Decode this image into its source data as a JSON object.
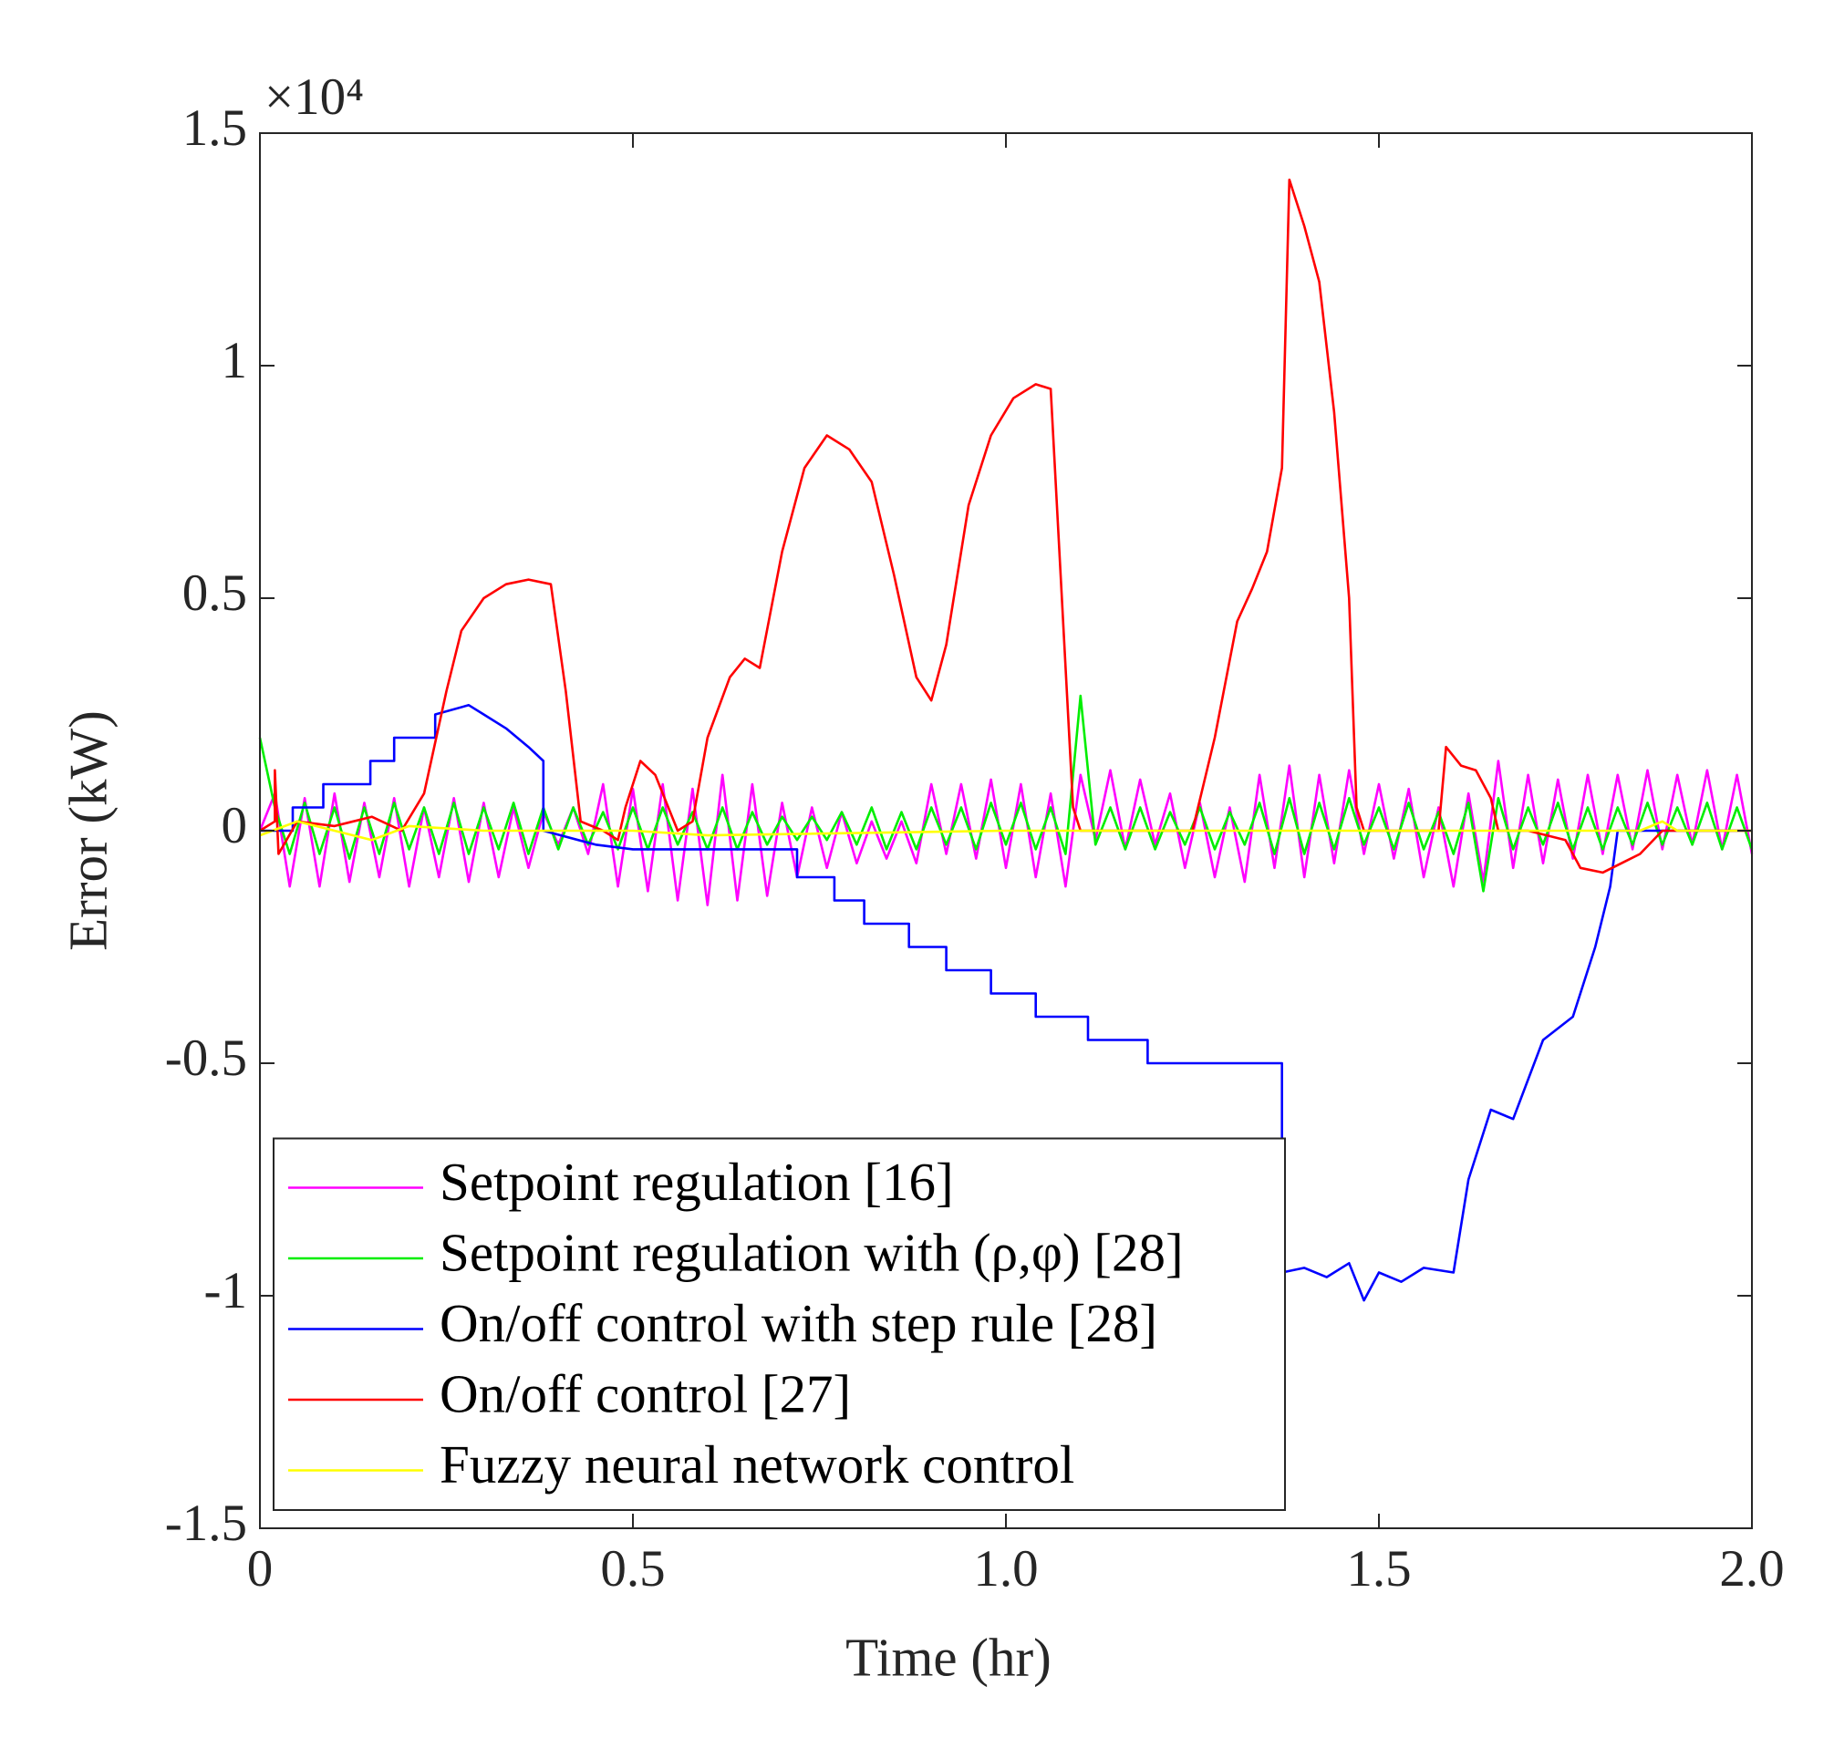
{
  "chart_data": {
    "type": "line",
    "y_multiplier": "×10⁴",
    "xlabel": "Time (hr)",
    "ylabel": "Error (kW)",
    "xlim": [
      0,
      2
    ],
    "ylim": [
      -1.5,
      1.5
    ],
    "xticks": [
      0,
      0.5,
      {
        "value": 1,
        "label": "1.0"
      },
      1.5,
      {
        "value": 2,
        "label": "2.0"
      }
    ],
    "yticks": [
      -1.5,
      -1,
      -0.5,
      0,
      0.5,
      1,
      1.5
    ],
    "legend": "lower left",
    "series": [
      {
        "name": "Setpoint regulation [16]",
        "color": "#ff00ff",
        "x": [
          0,
          0.02,
          0.04,
          0.06,
          0.08,
          0.1,
          0.12,
          0.14,
          0.16,
          0.18,
          0.2,
          0.22,
          0.24,
          0.26,
          0.28,
          0.3,
          0.32,
          0.34,
          0.36,
          0.38,
          0.4,
          0.42,
          0.44,
          0.46,
          0.48,
          0.5,
          0.52,
          0.54,
          0.56,
          0.58,
          0.6,
          0.62,
          0.64,
          0.66,
          0.68,
          0.7,
          0.72,
          0.74,
          0.76,
          0.78,
          0.8,
          0.82,
          0.84,
          0.86,
          0.88,
          0.9,
          0.92,
          0.94,
          0.96,
          0.98,
          1,
          1.02,
          1.04,
          1.06,
          1.08,
          1.1,
          1.12,
          1.14,
          1.16,
          1.18,
          1.2,
          1.22,
          1.24,
          1.26,
          1.28,
          1.3,
          1.32,
          1.34,
          1.36,
          1.38,
          1.4,
          1.42,
          1.44,
          1.46,
          1.48,
          1.5,
          1.52,
          1.54,
          1.56,
          1.58,
          1.6,
          1.62,
          1.64,
          1.66,
          1.68,
          1.7,
          1.72,
          1.74,
          1.76,
          1.78,
          1.8,
          1.82,
          1.84,
          1.86,
          1.88,
          1.9,
          1.92,
          1.94,
          1.96,
          1.98,
          2
        ],
        "values": [
          0,
          0.08,
          -0.12,
          0.07,
          -0.12,
          0.08,
          -0.11,
          0.06,
          -0.1,
          0.07,
          -0.12,
          0.05,
          -0.1,
          0.07,
          -0.11,
          0.06,
          -0.1,
          0.05,
          -0.08,
          0.04,
          -0.03,
          0.05,
          -0.05,
          0.1,
          -0.12,
          0.09,
          -0.13,
          0.1,
          -0.15,
          0.09,
          -0.16,
          0.12,
          -0.15,
          0.1,
          -0.14,
          0.06,
          -0.1,
          0.05,
          -0.08,
          0.04,
          -0.07,
          0.02,
          -0.06,
          0.02,
          -0.07,
          0.1,
          -0.05,
          0.1,
          -0.06,
          0.11,
          -0.08,
          0.1,
          -0.1,
          0.08,
          -0.12,
          0.12,
          -0.02,
          0.13,
          -0.04,
          0.11,
          -0.03,
          0.08,
          -0.08,
          0.06,
          -0.1,
          0.05,
          -0.11,
          0.12,
          -0.08,
          0.14,
          -0.1,
          0.12,
          -0.07,
          0.13,
          -0.05,
          0.1,
          -0.06,
          0.09,
          -0.1,
          0.05,
          -0.12,
          0.08,
          -0.11,
          0.15,
          -0.08,
          0.12,
          -0.07,
          0.11,
          -0.06,
          0.12,
          -0.05,
          0.12,
          -0.04,
          0.13,
          -0.04,
          0.12,
          -0.03,
          0.13,
          -0.04,
          0.12,
          -0.05
        ]
      },
      {
        "name": "Setpoint regulation with (ρ,φ) [28]",
        "color": "#00ee00",
        "x": [
          0,
          0.02,
          0.04,
          0.06,
          0.08,
          0.1,
          0.12,
          0.14,
          0.16,
          0.18,
          0.2,
          0.22,
          0.24,
          0.26,
          0.28,
          0.3,
          0.32,
          0.34,
          0.36,
          0.38,
          0.4,
          0.42,
          0.44,
          0.46,
          0.48,
          0.5,
          0.52,
          0.54,
          0.56,
          0.58,
          0.6,
          0.62,
          0.64,
          0.66,
          0.68,
          0.7,
          0.72,
          0.74,
          0.76,
          0.78,
          0.8,
          0.82,
          0.84,
          0.86,
          0.88,
          0.9,
          0.92,
          0.94,
          0.96,
          0.98,
          1,
          1.02,
          1.04,
          1.06,
          1.08,
          1.1,
          1.12,
          1.14,
          1.16,
          1.18,
          1.2,
          1.22,
          1.24,
          1.26,
          1.28,
          1.3,
          1.32,
          1.34,
          1.36,
          1.38,
          1.4,
          1.42,
          1.44,
          1.46,
          1.48,
          1.5,
          1.52,
          1.54,
          1.56,
          1.58,
          1.6,
          1.62,
          1.64,
          1.66,
          1.68,
          1.7,
          1.72,
          1.74,
          1.76,
          1.78,
          1.8,
          1.82,
          1.84,
          1.86,
          1.88,
          1.9,
          1.92,
          1.94,
          1.96,
          1.98,
          2
        ],
        "values": [
          0.2,
          0.05,
          -0.05,
          0.06,
          -0.05,
          0.05,
          -0.06,
          0.05,
          -0.05,
          0.06,
          -0.04,
          0.05,
          -0.05,
          0.06,
          -0.05,
          0.05,
          -0.04,
          0.06,
          -0.05,
          0.05,
          -0.04,
          0.05,
          -0.03,
          0.04,
          -0.04,
          0.05,
          -0.04,
          0.05,
          -0.03,
          0.04,
          -0.04,
          0.05,
          -0.04,
          0.04,
          -0.03,
          0.03,
          -0.02,
          0.03,
          -0.02,
          0.04,
          -0.03,
          0.05,
          -0.04,
          0.04,
          -0.04,
          0.05,
          -0.03,
          0.05,
          -0.04,
          0.06,
          -0.03,
          0.06,
          -0.04,
          0.05,
          -0.05,
          0.29,
          -0.03,
          0.05,
          -0.04,
          0.05,
          -0.04,
          0.04,
          -0.03,
          0.05,
          -0.04,
          0.04,
          -0.03,
          0.06,
          -0.05,
          0.07,
          -0.05,
          0.06,
          -0.04,
          0.07,
          -0.03,
          0.05,
          -0.04,
          0.06,
          -0.04,
          0.04,
          -0.05,
          0.06,
          -0.13,
          0.07,
          -0.04,
          0.05,
          -0.03,
          0.06,
          -0.04,
          0.05,
          -0.04,
          0.05,
          -0.03,
          0.06,
          -0.03,
          0.05,
          -0.03,
          0.06,
          -0.04,
          0.05,
          -0.04
        ]
      },
      {
        "name": "On/off control with step rule [28]",
        "color": "#0000ff",
        "x": [
          0,
          0.044,
          0.044,
          0.085,
          0.085,
          0.148,
          0.148,
          0.18,
          0.18,
          0.235,
          0.235,
          0.28,
          0.3,
          0.33,
          0.36,
          0.38,
          0.38,
          0.45,
          0.5,
          0.72,
          0.72,
          0.77,
          0.77,
          0.81,
          0.81,
          0.87,
          0.87,
          0.92,
          0.92,
          0.98,
          0.98,
          1.04,
          1.04,
          1.11,
          1.11,
          1.19,
          1.19,
          1.37,
          1.37,
          1.4,
          1.43,
          1.46,
          1.48,
          1.5,
          1.53,
          1.56,
          1.6,
          1.62,
          1.65,
          1.68,
          1.72,
          1.76,
          1.79,
          1.81,
          1.82,
          1.9,
          2
        ],
        "values": [
          0,
          0,
          0.05,
          0.05,
          0.1,
          0.1,
          0.15,
          0.15,
          0.2,
          0.2,
          0.25,
          0.27,
          0.25,
          0.22,
          0.18,
          0.15,
          0,
          -0.03,
          -0.04,
          -0.04,
          -0.1,
          -0.1,
          -0.15,
          -0.15,
          -0.2,
          -0.2,
          -0.25,
          -0.25,
          -0.3,
          -0.3,
          -0.35,
          -0.35,
          -0.4,
          -0.4,
          -0.45,
          -0.45,
          -0.5,
          -0.5,
          -0.95,
          -0.94,
          -0.96,
          -0.93,
          -1.01,
          -0.95,
          -0.97,
          -0.94,
          -0.95,
          -0.75,
          -0.6,
          -0.62,
          -0.45,
          -0.4,
          -0.25,
          -0.12,
          0,
          0,
          0
        ]
      },
      {
        "name": "On/off control [27]",
        "color": "#ff0000",
        "x": [
          0,
          0.02,
          0.02,
          0.025,
          0.05,
          0.1,
          0.15,
          0.19,
          0.22,
          0.25,
          0.27,
          0.3,
          0.33,
          0.36,
          0.39,
          0.41,
          0.43,
          0.46,
          0.48,
          0.49,
          0.51,
          0.53,
          0.56,
          0.58,
          0.6,
          0.63,
          0.65,
          0.67,
          0.7,
          0.73,
          0.76,
          0.79,
          0.82,
          0.85,
          0.88,
          0.9,
          0.92,
          0.95,
          0.98,
          1.01,
          1.04,
          1.06,
          1.09,
          1.1,
          1.2,
          1.25,
          1.28,
          1.31,
          1.33,
          1.35,
          1.37,
          1.38,
          1.4,
          1.42,
          1.44,
          1.46,
          1.47,
          1.48,
          1.58,
          1.59,
          1.61,
          1.63,
          1.65,
          1.66,
          1.7,
          1.75,
          1.77,
          1.8,
          1.85,
          1.88,
          2
        ],
        "values": [
          0,
          0.02,
          0.13,
          -0.05,
          0.02,
          0.01,
          0.03,
          0,
          0.08,
          0.3,
          0.43,
          0.5,
          0.53,
          0.54,
          0.53,
          0.3,
          0.02,
          0,
          -0.02,
          0.05,
          0.15,
          0.12,
          0,
          0.02,
          0.2,
          0.33,
          0.37,
          0.35,
          0.6,
          0.78,
          0.85,
          0.82,
          0.75,
          0.55,
          0.33,
          0.28,
          0.4,
          0.7,
          0.85,
          0.93,
          0.96,
          0.95,
          0.05,
          0,
          0,
          0,
          0.2,
          0.45,
          0.52,
          0.6,
          0.78,
          1.4,
          1.3,
          1.18,
          0.9,
          0.5,
          0.05,
          0,
          0,
          0.18,
          0.14,
          0.13,
          0.07,
          0,
          0,
          -0.02,
          -0.08,
          -0.09,
          -0.05,
          0,
          0
        ]
      },
      {
        "name": "Fuzzy neural network control",
        "color": "#ffff00",
        "x": [
          0,
          0.05,
          0.1,
          0.15,
          0.2,
          0.3,
          0.5,
          0.6,
          1,
          1.5,
          1.85,
          1.88,
          1.9,
          2
        ],
        "values": [
          -0.01,
          0.02,
          0,
          -0.02,
          0.01,
          0,
          0,
          -0.01,
          0,
          0,
          0,
          0.02,
          0,
          0
        ]
      }
    ]
  }
}
